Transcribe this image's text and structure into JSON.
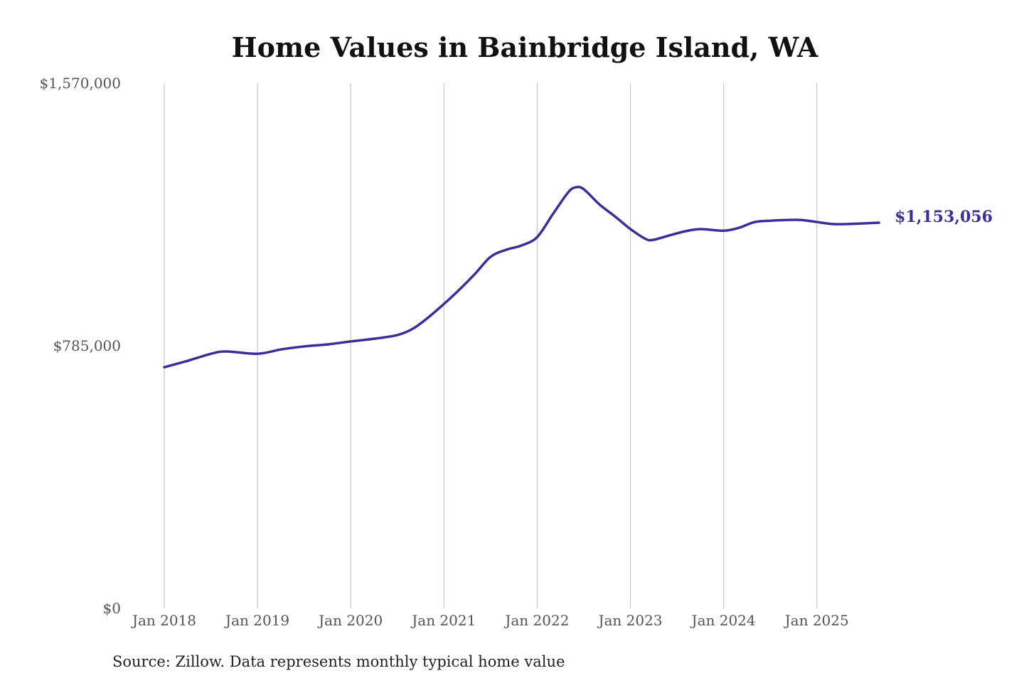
{
  "chart_data": {
    "type": "line",
    "title": "Home Values in Bainbridge Island, WA",
    "source": "Source: Zillow. Data represents monthly typical home value",
    "ylim": [
      0,
      1570000
    ],
    "y_ticks": [
      0,
      785000,
      1570000
    ],
    "y_tick_labels": [
      "$0",
      "$785,000",
      "$1,570,000"
    ],
    "x_tick_labels": [
      "Jan 2018",
      "Jan 2019",
      "Jan 2020",
      "Jan 2021",
      "Jan 2022",
      "Jan 2023",
      "Jan 2024",
      "Jan 2025"
    ],
    "grid": "vertical",
    "line_color": "#3a2f9a",
    "end_label": "$1,153,056",
    "x": [
      "2018-01",
      "2018-04",
      "2018-07",
      "2018-09",
      "2019-01",
      "2019-04",
      "2019-07",
      "2019-10",
      "2020-01",
      "2020-04",
      "2020-07",
      "2020-09",
      "2020-11",
      "2021-01",
      "2021-03",
      "2021-05",
      "2021-07",
      "2021-09",
      "2021-11",
      "2022-01",
      "2022-03",
      "2022-05",
      "2022-06",
      "2022-07",
      "2022-09",
      "2022-11",
      "2023-01",
      "2023-03",
      "2023-04",
      "2023-06",
      "2023-08",
      "2023-10",
      "2024-01",
      "2024-03",
      "2024-05",
      "2024-07",
      "2024-09",
      "2024-11",
      "2025-01",
      "2025-03",
      "2025-05",
      "2025-07",
      "2025-09"
    ],
    "values": [
      721000,
      740000,
      761000,
      768000,
      761000,
      774000,
      783000,
      789000,
      798000,
      806000,
      817000,
      836000,
      870000,
      910000,
      953000,
      1000000,
      1051000,
      1072000,
      1085000,
      1110000,
      1178000,
      1244000,
      1259000,
      1253000,
      1208000,
      1172000,
      1134000,
      1104000,
      1102000,
      1115000,
      1127000,
      1134000,
      1129000,
      1138000,
      1155000,
      1159000,
      1161000,
      1161000,
      1155000,
      1149000,
      1149000,
      1151000,
      1153056
    ]
  }
}
